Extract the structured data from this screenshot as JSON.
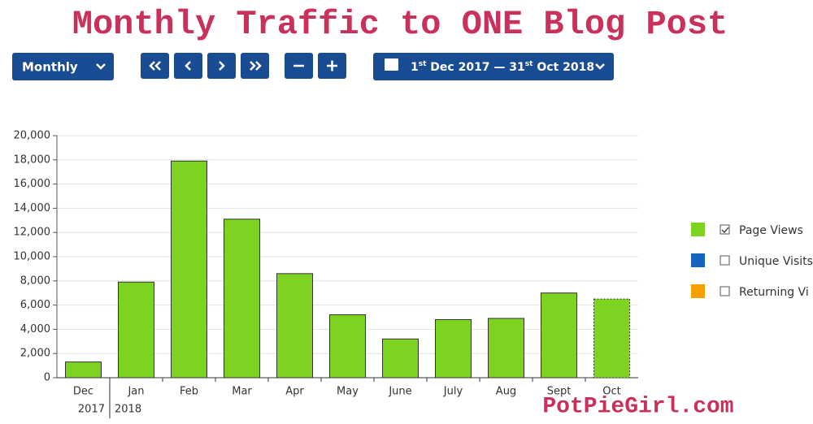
{
  "header": {
    "title": "Monthly Traffic to ONE Blog Post"
  },
  "toolbar": {
    "period": "Monthly",
    "date_range": [
      "1",
      "st",
      " Dec 2017 — 31",
      "st",
      " Oct 2018"
    ]
  },
  "chart_data": {
    "type": "bar",
    "categories": [
      "Dec",
      "Jan",
      "Feb",
      "Mar",
      "Apr",
      "May",
      "June",
      "July",
      "Aug",
      "Sept",
      "Oct"
    ],
    "year_labels": [
      "2017",
      "2018",
      null,
      null,
      null,
      null,
      null,
      null,
      null,
      null,
      null
    ],
    "series": [
      {
        "name": "Page Views",
        "color": "#7ed321",
        "checked": true,
        "values": [
          1300,
          7900,
          17900,
          13100,
          8600,
          5200,
          3200,
          4800,
          4900,
          7000,
          6500
        ]
      },
      {
        "name": "Unique Visits",
        "color": "#1565c0",
        "checked": false
      },
      {
        "name": "Returning Vi",
        "color": "#f5a000",
        "checked": false
      }
    ],
    "last_bar_dashed": true,
    "ylim": [
      0,
      20000
    ],
    "yticks": [
      0,
      {
        "value": 2000,
        "label": "2,000"
      },
      {
        "value": 4000,
        "label": "4,000"
      },
      {
        "value": 6000,
        "label": "6,000"
      },
      {
        "value": 8000,
        "label": "8,000"
      },
      {
        "value": 10000,
        "label": "10,000"
      },
      {
        "value": 12000,
        "label": "12,000"
      },
      {
        "value": 14000,
        "label": "14,000"
      },
      {
        "value": 16000,
        "label": "16,000"
      },
      {
        "value": 18000,
        "label": "18,000"
      },
      {
        "value": 20000,
        "label": "20,000"
      }
    ],
    "grid": true
  },
  "footer": {
    "watermark": "PotPieGirl.com"
  }
}
